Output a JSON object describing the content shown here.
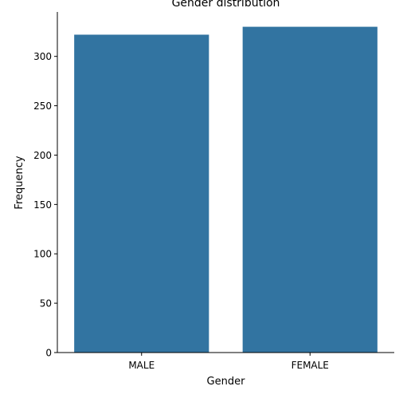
{
  "chart_data": {
    "type": "bar",
    "title": "Gender distribution",
    "xlabel": "Gender",
    "ylabel": "Frequency",
    "categories": [
      "MALE",
      "FEMALE"
    ],
    "values": [
      322,
      330
    ],
    "ylim": [
      0,
      345
    ],
    "yticks": [
      0,
      50,
      100,
      150,
      200,
      250,
      300
    ],
    "grid": false,
    "legend": "none",
    "bar_color": "#3274a1",
    "axis_color": "#000000"
  }
}
